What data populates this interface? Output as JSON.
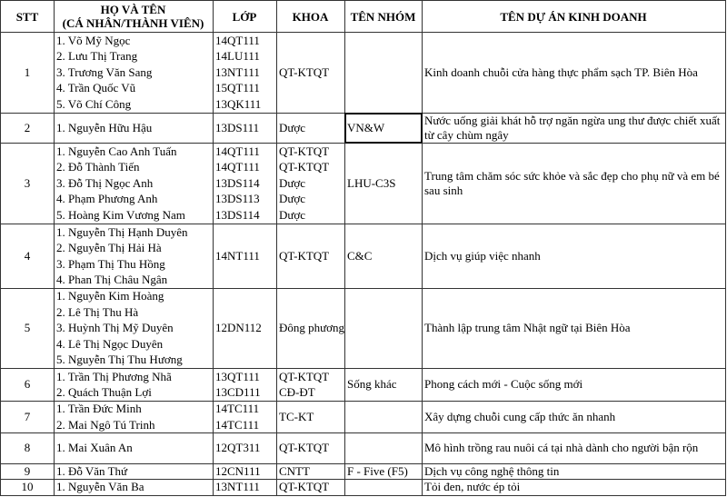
{
  "table": {
    "header": {
      "stt": "STT",
      "name": [
        "HỌ VÀ TÊN",
        "(CÁ NHÂN/THÀNH VIÊN)"
      ],
      "class": "LỚP",
      "faculty": "KHOA",
      "group": "TÊN NHÓM",
      "project": "TÊN DỰ ÁN KINH DOANH"
    },
    "rows": [
      {
        "stt": 1,
        "name": [
          "1. Võ Mỹ Ngọc",
          "2. Lưu Thị Trang",
          "3. Trương Văn Sang",
          "4. Trần Quốc Vũ",
          "5. Võ Chí Công"
        ],
        "class": [
          "14QT111",
          "14LU111",
          "13NT111",
          "15QT111",
          "13QK111"
        ],
        "faculty": "QT-KTQT",
        "project": "Kinh doanh chuỗi cửa hàng thực phẩm sạch TP. Biên Hòa"
      },
      {
        "stt": 2,
        "name": "1. Nguyễn Hữu Hậu",
        "class": "13DS111",
        "faculty": "Dược",
        "group": "VN&W",
        "project": "Nước uống giải khát hỗ trợ ngăn ngừa ung thư được chiết xuất từ cây chùm ngây"
      },
      {
        "stt": 3,
        "name": [
          "1. Nguyễn Cao Anh Tuấn",
          "2. Đỗ Thành Tiến",
          "3. Đỗ Thị Ngọc Anh",
          "4. Phạm Phương Anh",
          "5. Hoàng Kim Vương Nam"
        ],
        "class": [
          "14QT111",
          "14QT111",
          "13DS114",
          "13DS113",
          "13DS114"
        ],
        "faculty": [
          "QT-KTQT",
          "QT-KTQT",
          "Dược",
          "Dược",
          "Dược"
        ],
        "group": "LHU-C3S",
        "project": "Trung tâm chăm sóc sức khỏe và sắc đẹp cho phụ nữ và em bé sau sinh"
      },
      {
        "stt": 4,
        "name": [
          "1. Nguyễn Thị Hạnh Duyên",
          "2. Nguyễn Thị Hải Hà",
          "3. Phạm Thị Thu Hồng",
          "4. Phan Thị Châu Ngân"
        ],
        "class": "14NT111",
        "faculty": "QT-KTQT",
        "group": "C&C",
        "project": "Dịch vụ giúp việc nhanh"
      },
      {
        "stt": 5,
        "name": [
          "1. Nguyễn Kim Hoàng",
          "2. Lê Thị Thu Hà",
          "3. Huỳnh Thị Mỹ Duyên",
          "4. Lê Thị Ngọc Duyên",
          "5. Nguyễn Thị Thu Hương"
        ],
        "class": "12DN112",
        "faculty": "Đông phương",
        "project": "Thành lập trung tâm Nhật ngữ tại Biên Hòa"
      },
      {
        "stt": 6,
        "name": [
          "1. Trần Thị Phương Nhã",
          "2. Quách Thuận Lợi"
        ],
        "class": [
          "13QT111",
          "13CD111"
        ],
        "faculty": [
          "QT-KTQT",
          "CĐ-ĐT"
        ],
        "group": "Sống khác",
        "project": "Phong cách mới - Cuộc sống mới"
      },
      {
        "stt": 7,
        "name": [
          "1. Trần Đức Minh",
          "2. Mai Ngô Tú Trinh"
        ],
        "class": [
          "14TC111",
          "14TC111"
        ],
        "faculty": "TC-KT",
        "project": "Xây dựng chuỗi cung cấp thức ăn nhanh"
      },
      {
        "stt": 8,
        "name": "1. Mai Xuân An",
        "class": "12QT311",
        "faculty": "QT-KTQT",
        "project": "Mô hình trồng rau nuôi cá tại nhà dành cho người bận rộn"
      },
      {
        "stt": 9,
        "name": "1. Đỗ Văn Thứ",
        "class": "12CN111",
        "faculty": "CNTT",
        "group": "F - Five (F5)",
        "project": "Dịch vụ công nghệ thông tin"
      },
      {
        "stt": 10,
        "name": "1. Nguyễn Văn Ba",
        "class": "13NT111",
        "faculty": "QT-KTQT",
        "project": "Tỏi đen, nước ép tỏi"
      }
    ]
  }
}
